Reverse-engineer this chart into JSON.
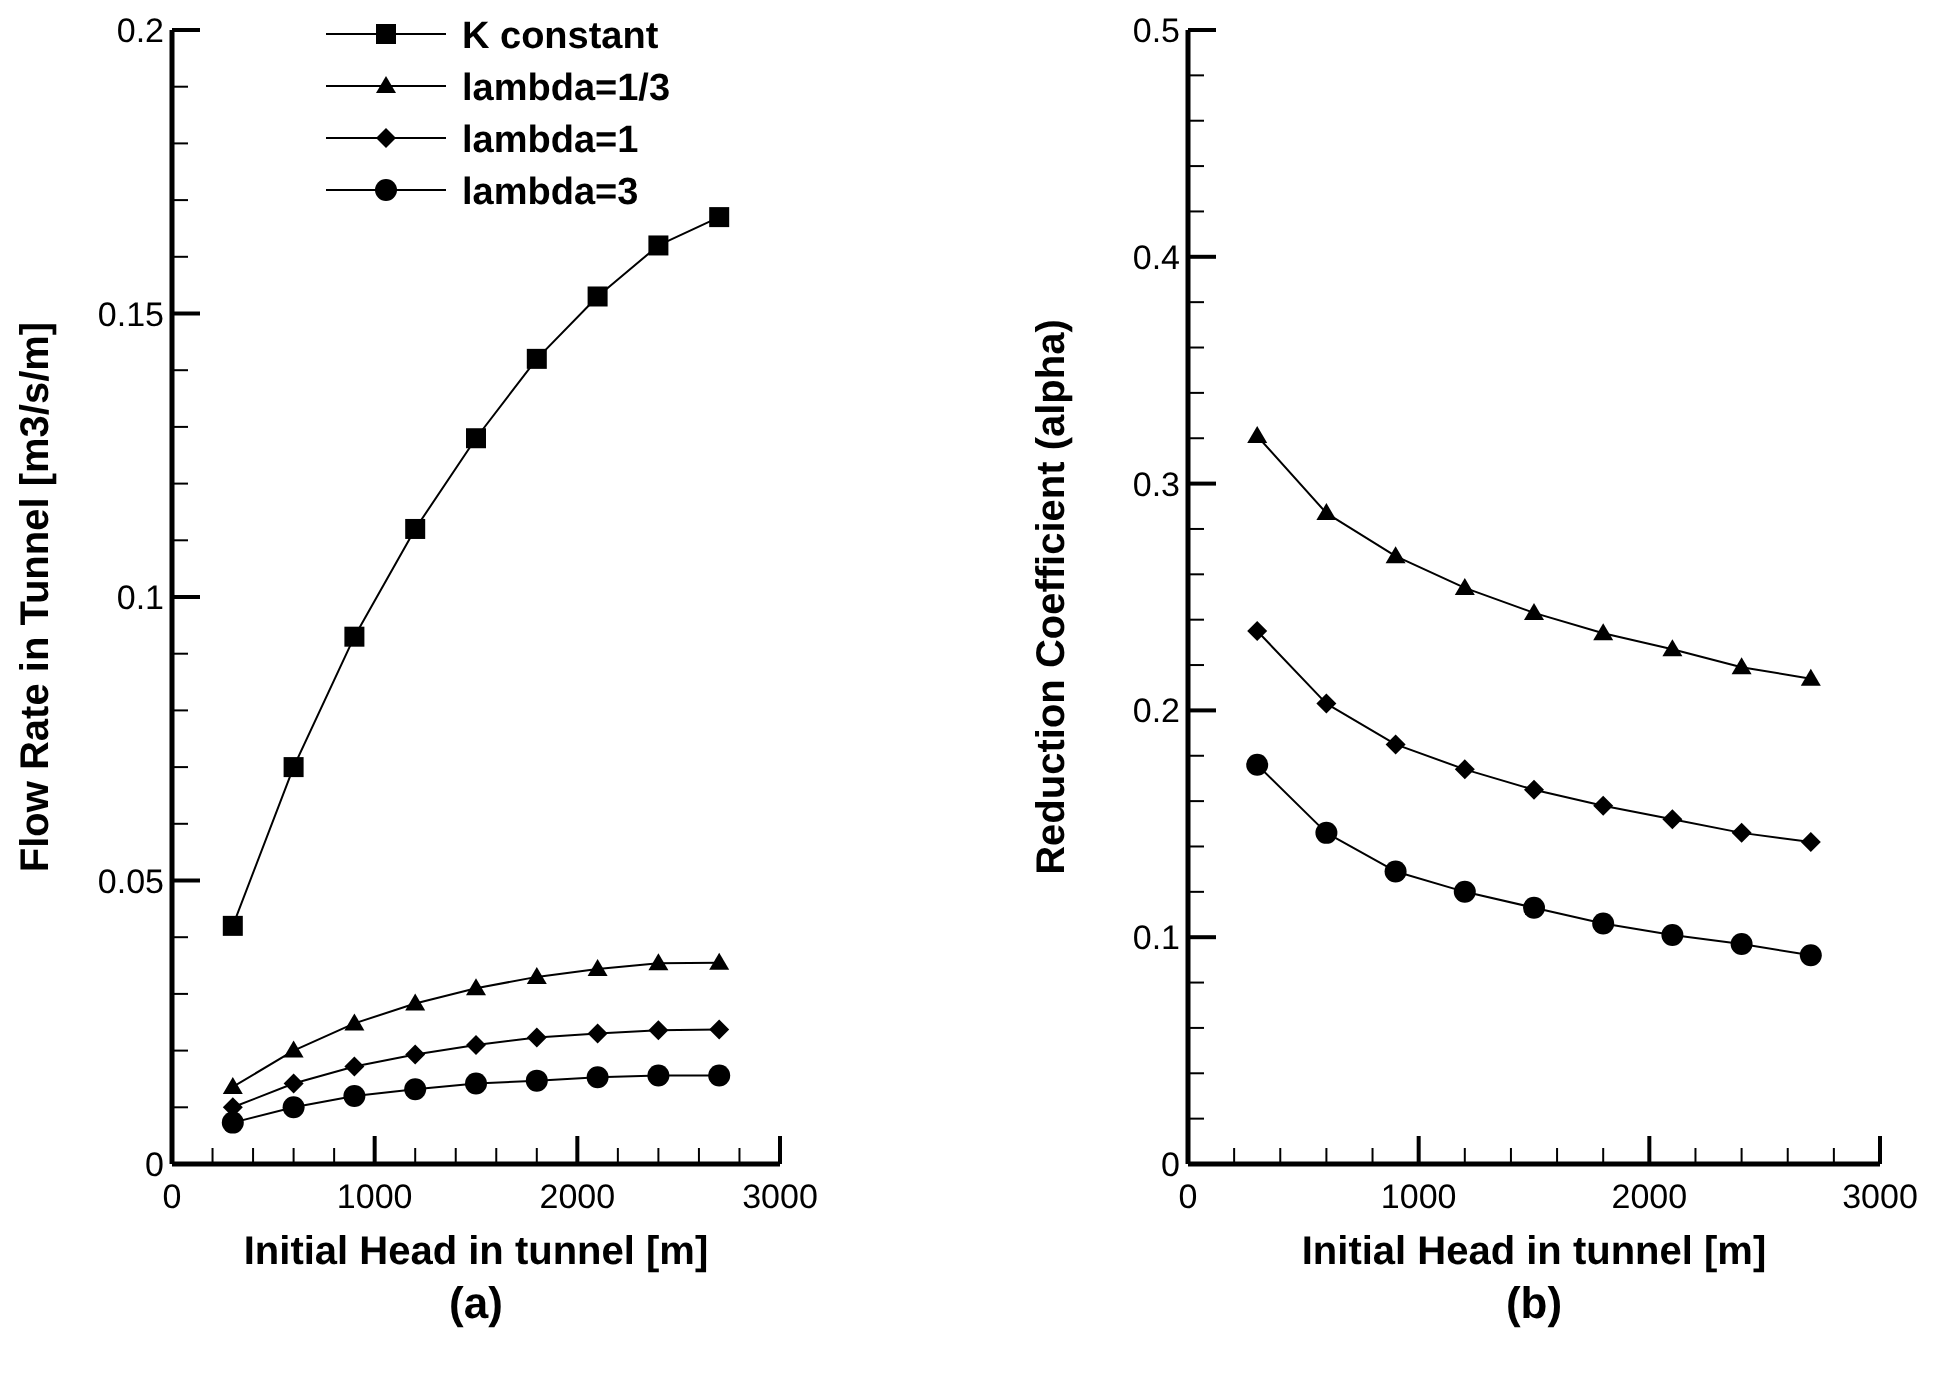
{
  "chart_data": [
    {
      "type": "line",
      "title": "(a)",
      "xlabel": "Initial Head in tunnel [m]",
      "ylabel": "Flow Rate in Tunnel [m3/s/m]",
      "x": [
        300,
        600,
        900,
        1200,
        1500,
        1800,
        2100,
        2400,
        2700
      ],
      "xlim": [
        0,
        3000
      ],
      "xticks": [
        0,
        {
          "value": 200,
          "label": null
        },
        {
          "value": 400,
          "label": null
        },
        {
          "value": 600,
          "label": null
        },
        {
          "value": 800,
          "label": null
        },
        1000,
        {
          "value": 1200,
          "label": null
        },
        {
          "value": 1400,
          "label": null
        },
        {
          "value": 1600,
          "label": null
        },
        {
          "value": 1800,
          "label": null
        },
        2000,
        {
          "value": 2200,
          "label": null
        },
        {
          "value": 2400,
          "label": null
        },
        {
          "value": 2600,
          "label": null
        },
        {
          "value": 2800,
          "label": null
        },
        3000
      ],
      "ylim": [
        0,
        0.2
      ],
      "yticks": [
        0,
        {
          "value": 0.01,
          "label": null
        },
        {
          "value": 0.02,
          "label": null
        },
        {
          "value": 0.03,
          "label": null
        },
        {
          "value": 0.04,
          "label": null
        },
        0.05,
        {
          "value": 0.06,
          "label": null
        },
        {
          "value": 0.07,
          "label": null
        },
        {
          "value": 0.08,
          "label": null
        },
        {
          "value": 0.09,
          "label": null
        },
        0.1,
        {
          "value": 0.11,
          "label": null
        },
        {
          "value": 0.12,
          "label": null
        },
        {
          "value": 0.13,
          "label": null
        },
        {
          "value": 0.14,
          "label": null
        },
        0.15,
        {
          "value": 0.16,
          "label": null
        },
        {
          "value": 0.17,
          "label": null
        },
        {
          "value": 0.18,
          "label": null
        },
        {
          "value": 0.19,
          "label": null
        },
        0.2
      ],
      "grid": false,
      "legend": "top",
      "line_style": "solid",
      "series": [
        {
          "name": "K constant",
          "color": "#000000",
          "marker": "square",
          "values": [
            0.042,
            0.07,
            0.093,
            0.112,
            0.128,
            0.142,
            0.153,
            0.162,
            0.167
          ]
        },
        {
          "name": "lambda=1/3",
          "color": "#000000",
          "marker": "triangle",
          "values": [
            0.0136,
            0.02,
            0.0248,
            0.0283,
            0.031,
            0.033,
            0.0344,
            0.0354,
            0.0355
          ]
        },
        {
          "name": "lambda=1",
          "color": "#000000",
          "marker": "diamond",
          "values": [
            0.01,
            0.0142,
            0.0172,
            0.0193,
            0.021,
            0.0223,
            0.023,
            0.0236,
            0.0237
          ]
        },
        {
          "name": "lambda=3",
          "color": "#000000",
          "marker": "circle",
          "values": [
            0.0073,
            0.01,
            0.012,
            0.0132,
            0.0142,
            0.0147,
            0.0153,
            0.0156,
            0.0156
          ]
        }
      ]
    },
    {
      "type": "line",
      "title": "(b)",
      "xlabel": "Initial Head in tunnel [m]",
      "ylabel": "Reduction Coefficient (alpha)",
      "x": [
        300,
        600,
        900,
        1200,
        1500,
        1800,
        2100,
        2400,
        2700
      ],
      "xlim": [
        0,
        3000
      ],
      "xticks": [
        0,
        {
          "value": 200,
          "label": null
        },
        {
          "value": 400,
          "label": null
        },
        {
          "value": 600,
          "label": null
        },
        {
          "value": 800,
          "label": null
        },
        1000,
        {
          "value": 1200,
          "label": null
        },
        {
          "value": 1400,
          "label": null
        },
        {
          "value": 1600,
          "label": null
        },
        {
          "value": 1800,
          "label": null
        },
        2000,
        {
          "value": 2200,
          "label": null
        },
        {
          "value": 2400,
          "label": null
        },
        {
          "value": 2600,
          "label": null
        },
        {
          "value": 2800,
          "label": null
        },
        3000
      ],
      "ylim": [
        0,
        0.5
      ],
      "yticks": [
        0,
        {
          "value": 0.02,
          "label": null
        },
        {
          "value": 0.04,
          "label": null
        },
        {
          "value": 0.06,
          "label": null
        },
        {
          "value": 0.08,
          "label": null
        },
        0.1,
        {
          "value": 0.12,
          "label": null
        },
        {
          "value": 0.14,
          "label": null
        },
        {
          "value": 0.16,
          "label": null
        },
        {
          "value": 0.18,
          "label": null
        },
        0.2,
        {
          "value": 0.22,
          "label": null
        },
        {
          "value": 0.24,
          "label": null
        },
        {
          "value": 0.26,
          "label": null
        },
        {
          "value": 0.28,
          "label": null
        },
        0.3,
        {
          "value": 0.32,
          "label": null
        },
        {
          "value": 0.34,
          "label": null
        },
        {
          "value": 0.36,
          "label": null
        },
        {
          "value": 0.38,
          "label": null
        },
        0.4,
        {
          "value": 0.42,
          "label": null
        },
        {
          "value": 0.44,
          "label": null
        },
        {
          "value": 0.46,
          "label": null
        },
        {
          "value": 0.48,
          "label": null
        },
        0.5
      ],
      "grid": false,
      "line_style": "solid",
      "series": [
        {
          "color": "#000000",
          "marker": "triangle",
          "values": [
            0.321,
            0.287,
            0.268,
            0.254,
            0.243,
            0.234,
            0.227,
            0.219,
            0.214
          ]
        },
        {
          "color": "#000000",
          "marker": "diamond",
          "values": [
            0.235,
            0.203,
            0.185,
            0.174,
            0.165,
            0.158,
            0.152,
            0.146,
            0.142
          ]
        },
        {
          "color": "#000000",
          "marker": "circle",
          "values": [
            0.176,
            0.146,
            0.129,
            0.12,
            0.113,
            0.106,
            0.101,
            0.097,
            0.092
          ]
        }
      ]
    }
  ]
}
